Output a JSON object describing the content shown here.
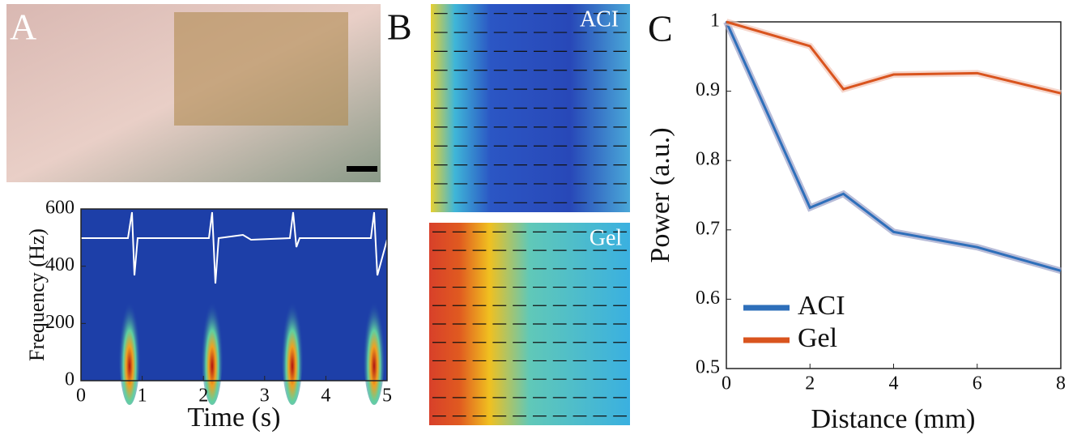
{
  "panels": {
    "a": "A",
    "b": "B",
    "c": "C",
    "b_top": "ACI",
    "b_bottom": "Gel"
  },
  "chart_data": [
    {
      "type": "spectrogram",
      "x_label": "Time (s)",
      "y_label": "Frequency (Hz)",
      "xlim": [
        0,
        5
      ],
      "xticks": [
        0,
        1,
        2,
        3,
        4,
        5
      ],
      "ylim": [
        0,
        600
      ],
      "yticks": [
        0,
        200,
        400,
        600
      ]
    },
    {
      "type": "line",
      "x_label": "Distance (mm)",
      "y_label": "Power (a.u.)",
      "x": [
        0,
        2,
        2.8,
        4,
        6,
        8
      ],
      "xlim": [
        0,
        8
      ],
      "xticks": [
        0,
        2,
        4,
        6,
        8
      ],
      "ylim": [
        0.5,
        1
      ],
      "yticks": [
        0.5,
        0.6,
        0.7,
        0.8,
        0.9,
        1
      ],
      "legend": "lower left",
      "series": [
        {
          "name": "ACI",
          "color": "#2e6fba",
          "values": [
            1,
            0.732,
            0.752,
            0.697,
            0.675,
            0.641
          ]
        },
        {
          "name": "Gel",
          "color": "#d9541e",
          "values": [
            1,
            0.965,
            0.903,
            0.924,
            0.926,
            0.897
          ]
        }
      ]
    }
  ]
}
